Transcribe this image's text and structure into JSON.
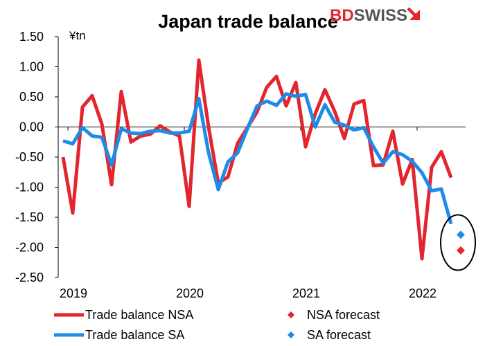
{
  "brand": {
    "text_bd": "BD",
    "text_swiss": "SWISS",
    "bd_color": "#e3262d",
    "swiss_color": "#555555"
  },
  "chart_data": {
    "type": "line",
    "title": "Japan trade balance",
    "ylabel": "¥tn",
    "ylim": [
      -2.5,
      1.5
    ],
    "yticks": [
      1.5,
      1.0,
      0.5,
      0.0,
      -0.5,
      -1.0,
      -1.5,
      -2.0,
      -2.5
    ],
    "ytick_labels": [
      "1.50",
      "1.00",
      "0.50",
      "0.00",
      "-0.50",
      "-1.00",
      "-1.50",
      "-2.00",
      "-2.50"
    ],
    "xtick_labels": [
      "2019",
      "2020",
      "2021",
      "2022"
    ],
    "x_start": "2018-12",
    "x_end": "2022-05",
    "x_axis_at": 0.0,
    "grid": false,
    "legend_position": "bottom",
    "series": [
      {
        "name": "Trade balance NSA",
        "type": "line",
        "color": "#e3262d",
        "x": [
          "2018-12",
          "2019-01",
          "2019-02",
          "2019-03",
          "2019-04",
          "2019-05",
          "2019-06",
          "2019-07",
          "2019-08",
          "2019-09",
          "2019-10",
          "2019-11",
          "2019-12",
          "2020-01",
          "2020-02",
          "2020-03",
          "2020-04",
          "2020-05",
          "2020-06",
          "2020-07",
          "2020-08",
          "2020-09",
          "2020-10",
          "2020-11",
          "2020-12",
          "2021-01",
          "2021-02",
          "2021-03",
          "2021-04",
          "2021-05",
          "2021-06",
          "2021-07",
          "2021-08",
          "2021-09",
          "2021-10",
          "2021-11",
          "2021-12",
          "2022-01",
          "2022-02",
          "2022-03",
          "2022-04"
        ],
        "values": [
          -0.5,
          -1.43,
          0.33,
          0.52,
          0.05,
          -0.96,
          0.59,
          -0.25,
          -0.15,
          -0.12,
          0.02,
          -0.08,
          -0.15,
          -1.32,
          1.11,
          0.0,
          -0.93,
          -0.83,
          -0.27,
          -0.01,
          0.25,
          0.66,
          0.84,
          0.35,
          0.74,
          -0.33,
          0.22,
          0.62,
          0.26,
          -0.19,
          0.38,
          0.44,
          -0.64,
          -0.63,
          -0.07,
          -0.95,
          -0.54,
          -2.19,
          -0.67,
          -0.41,
          -0.84
        ]
      },
      {
        "name": "Trade balance SA",
        "type": "line",
        "color": "#1e8be8",
        "x": [
          "2018-12",
          "2019-01",
          "2019-02",
          "2019-03",
          "2019-04",
          "2019-05",
          "2019-06",
          "2019-07",
          "2019-08",
          "2019-09",
          "2019-10",
          "2019-11",
          "2019-12",
          "2020-01",
          "2020-02",
          "2020-03",
          "2020-04",
          "2020-05",
          "2020-06",
          "2020-07",
          "2020-08",
          "2020-09",
          "2020-10",
          "2020-11",
          "2020-12",
          "2021-01",
          "2021-02",
          "2021-03",
          "2021-04",
          "2021-05",
          "2021-06",
          "2021-07",
          "2021-08",
          "2021-09",
          "2021-10",
          "2021-11",
          "2021-12",
          "2022-01",
          "2022-02",
          "2022-03",
          "2022-04"
        ],
        "values": [
          -0.23,
          -0.28,
          -0.01,
          -0.15,
          -0.17,
          -0.63,
          -0.03,
          -0.1,
          -0.11,
          -0.07,
          -0.06,
          -0.1,
          -0.1,
          -0.07,
          0.47,
          -0.43,
          -1.04,
          -0.58,
          -0.43,
          -0.03,
          0.35,
          0.43,
          0.36,
          0.55,
          0.51,
          0.54,
          0.0,
          0.37,
          0.08,
          0.03,
          -0.05,
          -0.01,
          -0.33,
          -0.6,
          -0.41,
          -0.46,
          -0.57,
          -0.76,
          -1.06,
          -1.03,
          -1.61
        ]
      },
      {
        "name": "NSA forecast",
        "type": "scatter",
        "marker": "diamond",
        "color": "#e3262d",
        "x": [
          "2022-05"
        ],
        "values": [
          -2.05
        ]
      },
      {
        "name": "SA forecast",
        "type": "scatter",
        "marker": "diamond",
        "color": "#1e8be8",
        "x": [
          "2022-05"
        ],
        "values": [
          -1.79
        ]
      }
    ],
    "annotations": [
      {
        "type": "ellipse",
        "around": [
          "NSA forecast",
          "SA forecast"
        ],
        "color": "#000000"
      }
    ]
  }
}
